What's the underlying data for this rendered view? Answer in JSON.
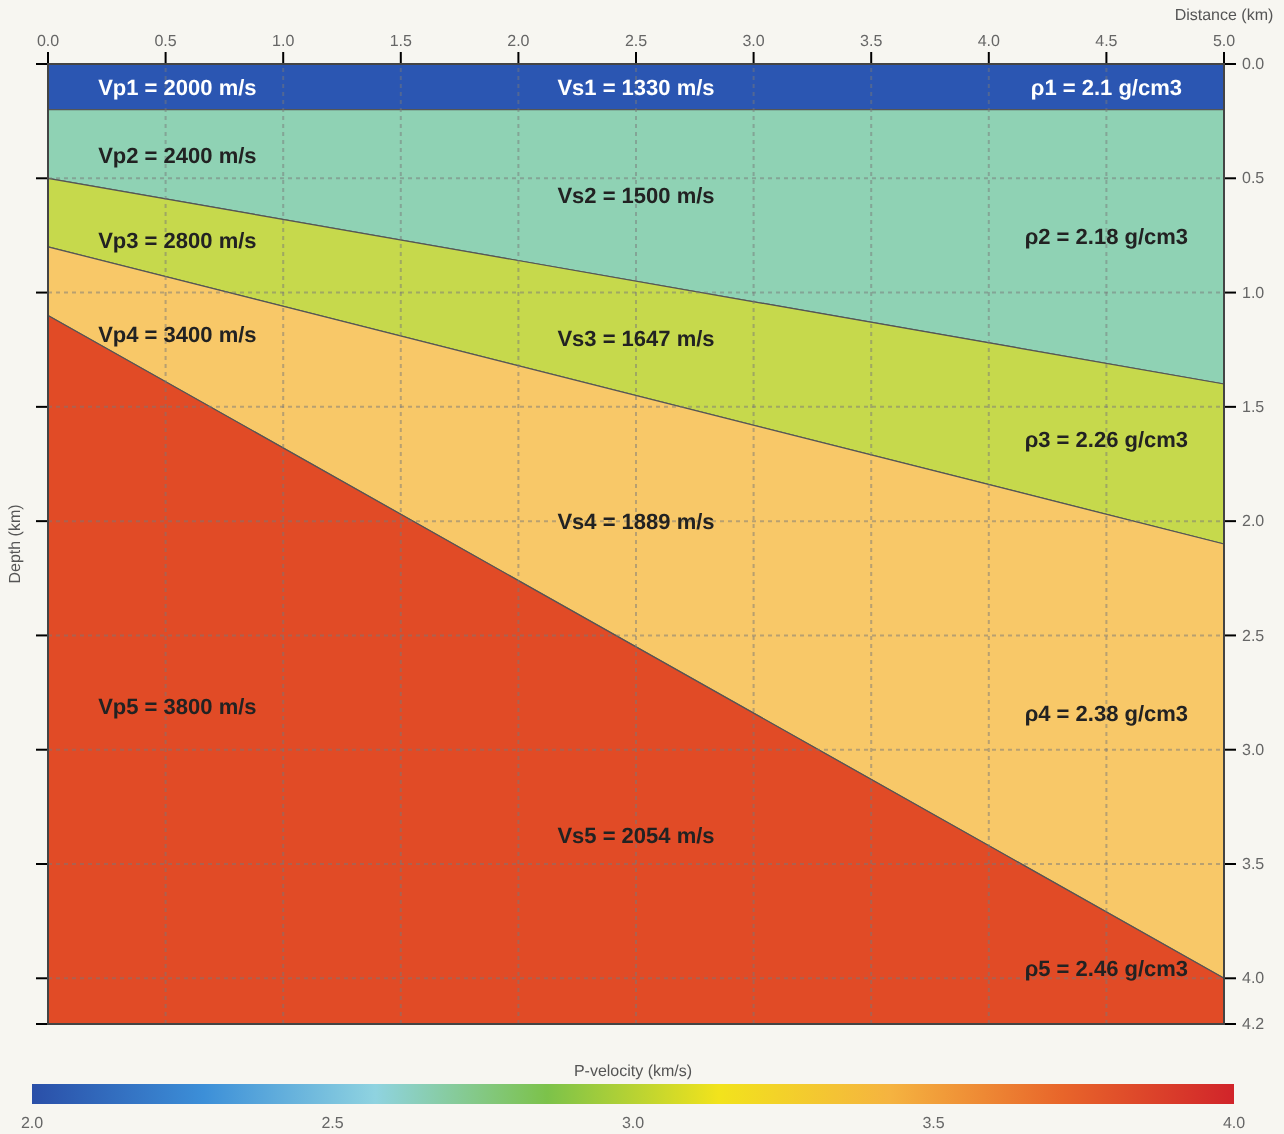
{
  "chart_data": {
    "type": "area",
    "stacked": true,
    "xlabel": "Distance (km)",
    "ylabel": "Depth (km)",
    "clabel": "P-velocity (km/s)",
    "x": [
      0,
      5
    ],
    "series": [
      {
        "color": "#2b56b2",
        "values": [
          0.2,
          0.2
        ]
      },
      {
        "color": "#8fd2b4",
        "values": [
          0.3,
          1.2
        ]
      },
      {
        "color": "#c6d94c",
        "values": [
          0.3,
          0.7
        ]
      },
      {
        "color": "#f8c868",
        "values": [
          0.3,
          1.9
        ]
      },
      {
        "color": "#e14b26",
        "values": [
          3.1,
          0.2
        ]
      }
    ],
    "xlim": [
      0,
      5
    ],
    "xticks": [
      {
        "value": 0,
        "label": "0.0"
      },
      {
        "value": 0.5,
        "label": "0.5"
      },
      {
        "value": 1,
        "label": "1.0"
      },
      {
        "value": 1.5,
        "label": "1.5"
      },
      {
        "value": 2,
        "label": "2.0"
      },
      {
        "value": 2.5,
        "label": "2.5"
      },
      {
        "value": 3,
        "label": "3.0"
      },
      {
        "value": 3.5,
        "label": "3.5"
      },
      {
        "value": 4,
        "label": "4.0"
      },
      {
        "value": 4.5,
        "label": "4.5"
      },
      {
        "value": 5,
        "label": "5.0"
      }
    ],
    "ylim": [
      4.2,
      0
    ],
    "yticks": [
      {
        "value": 0,
        "label": "0.0"
      },
      {
        "value": 0.5,
        "label": "0.5"
      },
      {
        "value": 1,
        "label": "1.0"
      },
      {
        "value": 1.5,
        "label": "1.5"
      },
      {
        "value": 2,
        "label": "2.0"
      },
      {
        "value": 2.5,
        "label": "2.5"
      },
      {
        "value": 3,
        "label": "3.0"
      },
      {
        "value": 3.5,
        "label": "3.5"
      },
      {
        "value": 4,
        "label": "4.0"
      },
      {
        "value": 4.2,
        "label": "4.2"
      }
    ],
    "clim": [
      2,
      4
    ],
    "cticks": [
      {
        "value": 2,
        "label": "2.0"
      },
      {
        "value": 2.5,
        "label": "2.5"
      },
      {
        "value": 3,
        "label": "3.0"
      },
      {
        "value": 3.5,
        "label": "3.5"
      },
      {
        "value": 4,
        "label": "4.0"
      }
    ],
    "grid": true,
    "annotations": [
      "Vp1 = 2000 m/s",
      "Vs1 = 1330 m/s",
      "ρ1 = 2.1 g/cm3",
      "Vp2 = 2400 m/s",
      "Vs2 = 1500 m/s",
      "ρ2 = 2.18 g/cm3",
      "Vp3 = 2800 m/s",
      "Vs3 = 1647 m/s",
      "ρ3 = 2.26 g/cm3",
      "Vp4 = 3400 m/s",
      "Vs4 = 1889 m/s",
      "ρ4 = 2.38 g/cm3",
      "Vp5 = 3800 m/s",
      "Vs5 = 2054 m/s",
      "ρ5 = 2.46 g/cm3"
    ]
  }
}
